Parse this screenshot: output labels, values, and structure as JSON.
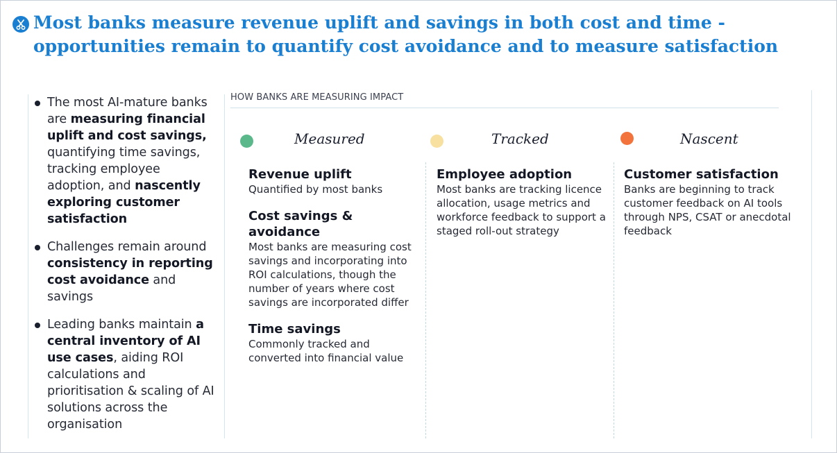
{
  "title": "Most banks measure revenue uplift and savings in both cost and time - opportunities remain to quantify cost avoidance and to measure satisfaction",
  "logo_icon": "scissors-icon",
  "left_bullets": [
    {
      "segments": [
        {
          "text": "The most AI-mature banks are ",
          "bold": false
        },
        {
          "text": "measuring financial uplift and cost savings,",
          "bold": true
        },
        {
          "text": " quantifying time savings, tracking employee adoption, and ",
          "bold": false
        },
        {
          "text": "nascently exploring customer satisfaction",
          "bold": true
        }
      ]
    },
    {
      "segments": [
        {
          "text": "Challenges remain around ",
          "bold": false
        },
        {
          "text": "consistency in reporting cost avoidance",
          "bold": true
        },
        {
          "text": " and savings",
          "bold": false
        }
      ]
    },
    {
      "segments": [
        {
          "text": "Leading banks maintain ",
          "bold": false
        },
        {
          "text": "a central inventory of AI use cases",
          "bold": true
        },
        {
          "text": ", aiding ROI calculations and prioritisation & scaling of AI solutions across the organisation",
          "bold": false
        }
      ]
    }
  ],
  "impact": {
    "label": "HOW BANKS ARE MEASURING IMPACT",
    "columns": [
      {
        "title": "Measured",
        "color": "#5ab88a",
        "items": [
          {
            "title": "Revenue uplift",
            "desc": "Quantified by most banks"
          },
          {
            "title": "Cost savings & avoidance",
            "desc": "Most banks are measuring cost savings and incorporating into ROI calculations, though the number of years where cost savings are incorporated differ"
          },
          {
            "title": "Time savings",
            "desc": "Commonly tracked and converted into financial value"
          }
        ]
      },
      {
        "title": "Tracked",
        "color": "#f7e0a0",
        "items": [
          {
            "title": "Employee adoption",
            "desc": "Most banks are tracking licence allocation, usage metrics and workforce feedback to support a staged roll-out strategy"
          }
        ]
      },
      {
        "title": "Nascent",
        "color": "#f2743c",
        "items": [
          {
            "title": "Customer satisfaction",
            "desc": "Banks are beginning to track customer feedback on AI tools through NPS, CSAT or anecdotal feedback"
          }
        ]
      }
    ]
  }
}
